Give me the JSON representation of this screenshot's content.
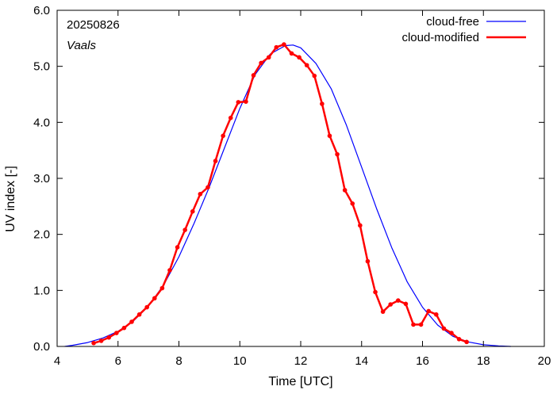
{
  "chart_data": {
    "type": "line",
    "xlabel": "Time  [UTC]",
    "ylabel": "UV index  [-]",
    "xlim": [
      4,
      20
    ],
    "ylim": [
      0,
      6
    ],
    "x_ticks": [
      4,
      6,
      8,
      10,
      12,
      14,
      16,
      18,
      20
    ],
    "y_ticks": [
      0,
      1,
      2,
      3,
      4,
      5,
      6
    ],
    "x_tick_labels": [
      "4",
      "6",
      "8",
      "10",
      "12",
      "14",
      "16",
      "18",
      "20"
    ],
    "y_tick_labels": [
      "0.0",
      "1.0",
      "2.0",
      "3.0",
      "4.0",
      "5.0",
      "6.0"
    ],
    "annotations": {
      "date": "20250826",
      "location": "Vaals"
    },
    "legend_position": "top-right",
    "grid": false,
    "series": [
      {
        "name": "cloud-free",
        "color": "#0000ff",
        "markers": false,
        "x": [
          4.25,
          4.5,
          5.0,
          5.5,
          6.0,
          6.5,
          7.0,
          7.5,
          8.0,
          8.5,
          9.0,
          9.5,
          10.0,
          10.5,
          11.0,
          11.5,
          11.75,
          12.0,
          12.5,
          13.0,
          13.5,
          14.0,
          14.5,
          15.0,
          15.5,
          16.0,
          16.5,
          17.0,
          17.5,
          18.0,
          18.5,
          18.9
        ],
        "y": [
          0.0,
          0.02,
          0.07,
          0.15,
          0.27,
          0.45,
          0.72,
          1.1,
          1.6,
          2.2,
          2.85,
          3.55,
          4.25,
          4.85,
          5.22,
          5.37,
          5.38,
          5.33,
          5.05,
          4.6,
          3.95,
          3.2,
          2.45,
          1.75,
          1.15,
          0.7,
          0.38,
          0.18,
          0.08,
          0.03,
          0.01,
          0.0
        ]
      },
      {
        "name": "cloud-modified",
        "color": "#ff0000",
        "markers": true,
        "x": [
          5.2,
          5.45,
          5.7,
          5.95,
          6.2,
          6.45,
          6.7,
          6.95,
          7.2,
          7.45,
          7.7,
          7.95,
          8.2,
          8.45,
          8.7,
          8.95,
          9.2,
          9.45,
          9.7,
          9.95,
          10.2,
          10.45,
          10.7,
          10.95,
          11.2,
          11.45,
          11.7,
          11.95,
          12.2,
          12.45,
          12.7,
          12.95,
          13.2,
          13.45,
          13.7,
          13.95,
          14.2,
          14.45,
          14.7,
          14.95,
          15.2,
          15.45,
          15.7,
          15.95,
          16.2,
          16.45,
          16.7,
          16.95,
          17.2,
          17.45
        ],
        "y": [
          0.06,
          0.1,
          0.16,
          0.24,
          0.33,
          0.44,
          0.57,
          0.7,
          0.86,
          1.04,
          1.36,
          1.77,
          2.08,
          2.41,
          2.72,
          2.84,
          3.31,
          3.76,
          4.08,
          4.36,
          4.37,
          4.84,
          5.06,
          5.16,
          5.34,
          5.39,
          5.23,
          5.16,
          5.02,
          4.83,
          4.33,
          3.76,
          3.43,
          2.79,
          2.55,
          2.16,
          1.52,
          0.97,
          0.62,
          0.75,
          0.82,
          0.76,
          0.39,
          0.39,
          0.63,
          0.57,
          0.32,
          0.24,
          0.13,
          0.08
        ]
      }
    ]
  }
}
